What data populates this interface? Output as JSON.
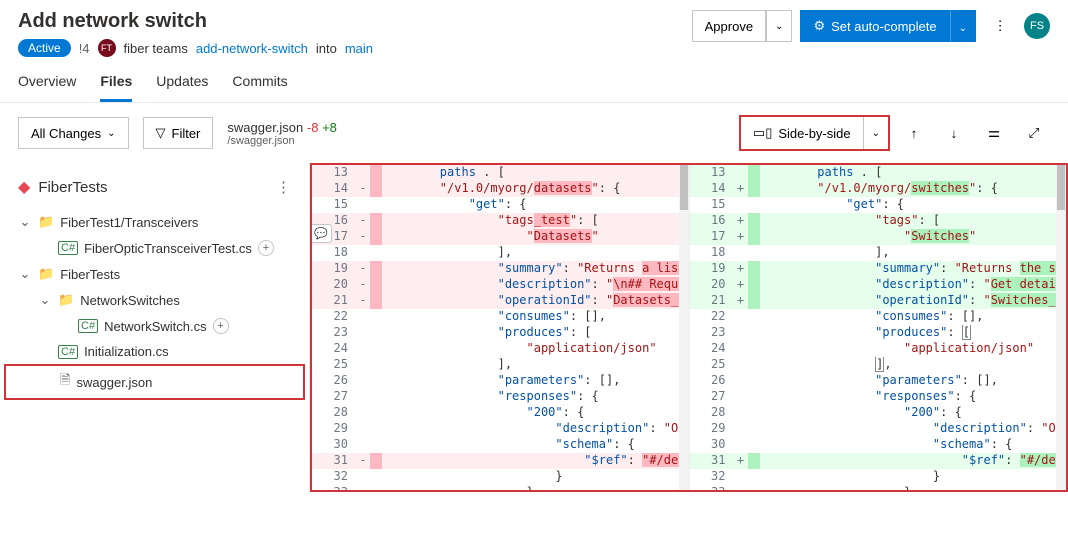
{
  "header": {
    "title": "Add network switch",
    "status": "Active",
    "id": "!4",
    "teamInitials": "FT",
    "teamName": "fiber teams",
    "sourceBranch": "add-network-switch",
    "into": "into",
    "targetBranch": "main",
    "approve": "Approve",
    "autoComplete": "Set auto-complete",
    "userInitials": "FS"
  },
  "tabs": [
    "Overview",
    "Files",
    "Updates",
    "Commits"
  ],
  "activeTab": "Files",
  "toolbar": {
    "allChanges": "All Changes",
    "filter": "Filter",
    "fileName": "swagger.json",
    "filePath": "/swagger.json",
    "deletions": "-8",
    "additions": "+8",
    "viewMode": "Side-by-side"
  },
  "repo": "FiberTests",
  "tree": [
    {
      "type": "folder",
      "label": "FiberTest1/Transceivers",
      "depth": 0,
      "expanded": true
    },
    {
      "type": "cs",
      "label": "FiberOpticTransceiverTest.cs",
      "depth": 1,
      "add": true
    },
    {
      "type": "folder",
      "label": "FiberTests",
      "depth": 0,
      "expanded": true
    },
    {
      "type": "folder",
      "label": "NetworkSwitches",
      "depth": 1,
      "expanded": true
    },
    {
      "type": "cs",
      "label": "NetworkSwitch.cs",
      "depth": 2,
      "add": true
    },
    {
      "type": "cs",
      "label": "Initialization.cs",
      "depth": 1
    },
    {
      "type": "file",
      "label": "swagger.json",
      "depth": 1,
      "selected": true
    }
  ],
  "diff": {
    "colors": {
      "delBg": "#ffeef0",
      "delGutter": "#fdb8c0",
      "addBg": "#e6ffed",
      "addGutter": "#acf2bd",
      "key": "#0451a5",
      "str": "#a31515"
    },
    "left": [
      {
        "n": 13,
        "m": "",
        "t": "del",
        "seg": [
          [
            "        ",
            "p"
          ],
          [
            "paths",
            "k"
          ],
          [
            " . [",
            "p"
          ]
        ]
      },
      {
        "n": 14,
        "m": "-",
        "t": "del",
        "seg": [
          [
            "        ",
            "p"
          ],
          [
            "\"/v1.0/myorg/",
            "str"
          ],
          [
            "datasets",
            "str-hl"
          ],
          [
            "\"",
            "str"
          ],
          [
            ": {",
            "p"
          ]
        ]
      },
      {
        "n": 15,
        "m": "",
        "t": "",
        "seg": [
          [
            "            ",
            "p"
          ],
          [
            "\"get\"",
            "k"
          ],
          [
            ": {",
            "p"
          ]
        ]
      },
      {
        "n": 16,
        "m": "-",
        "t": "del",
        "seg": [
          [
            "                ",
            "p"
          ],
          [
            "\"tags",
            "str"
          ],
          [
            "_test",
            "str-hl"
          ],
          [
            "\"",
            "str"
          ],
          [
            ": [",
            "p"
          ]
        ]
      },
      {
        "n": 17,
        "m": "-",
        "t": "del",
        "seg": [
          [
            "                    ",
            "p"
          ],
          [
            "\"",
            "str"
          ],
          [
            "Datasets",
            "str-hl"
          ],
          [
            "\"",
            "str"
          ]
        ]
      },
      {
        "n": 18,
        "m": "",
        "t": "",
        "seg": [
          [
            "                ],",
            "p"
          ]
        ]
      },
      {
        "n": 19,
        "m": "-",
        "t": "del",
        "seg": [
          [
            "                ",
            "p"
          ],
          [
            "\"summary\"",
            "k"
          ],
          [
            ": ",
            "p"
          ],
          [
            "\"Returns ",
            "str"
          ],
          [
            "a list of",
            "str-hl"
          ]
        ]
      },
      {
        "n": 20,
        "m": "-",
        "t": "del",
        "seg": [
          [
            "                ",
            "p"
          ],
          [
            "\"description\"",
            "k"
          ],
          [
            ": ",
            "p"
          ],
          [
            "\"",
            "str"
          ],
          [
            "\\n## Required",
            "str-hl"
          ]
        ]
      },
      {
        "n": 21,
        "m": "-",
        "t": "del",
        "seg": [
          [
            "                ",
            "p"
          ],
          [
            "\"operationId\"",
            "k"
          ],
          [
            ": ",
            "p"
          ],
          [
            "\"",
            "str"
          ],
          [
            "Datasets_GetD",
            "str-hl"
          ]
        ]
      },
      {
        "n": 22,
        "m": "",
        "t": "",
        "seg": [
          [
            "                ",
            "p"
          ],
          [
            "\"consumes\"",
            "k"
          ],
          [
            ": [],",
            "p"
          ]
        ]
      },
      {
        "n": 23,
        "m": "",
        "t": "",
        "seg": [
          [
            "                ",
            "p"
          ],
          [
            "\"produces\"",
            "k"
          ],
          [
            ": [",
            "p"
          ]
        ]
      },
      {
        "n": 24,
        "m": "",
        "t": "",
        "seg": [
          [
            "                    ",
            "p"
          ],
          [
            "\"application/json\"",
            "str"
          ]
        ]
      },
      {
        "n": 25,
        "m": "",
        "t": "",
        "seg": [
          [
            "                ],",
            "p"
          ]
        ]
      },
      {
        "n": 26,
        "m": "",
        "t": "",
        "seg": [
          [
            "                ",
            "p"
          ],
          [
            "\"parameters\"",
            "k"
          ],
          [
            ": [],",
            "p"
          ]
        ]
      },
      {
        "n": 27,
        "m": "",
        "t": "",
        "seg": [
          [
            "                ",
            "p"
          ],
          [
            "\"responses\"",
            "k"
          ],
          [
            ": {",
            "p"
          ]
        ]
      },
      {
        "n": 28,
        "m": "",
        "t": "",
        "seg": [
          [
            "                    ",
            "p"
          ],
          [
            "\"200\"",
            "k"
          ],
          [
            ": {",
            "p"
          ]
        ]
      },
      {
        "n": 29,
        "m": "",
        "t": "",
        "seg": [
          [
            "                        ",
            "p"
          ],
          [
            "\"description\"",
            "k"
          ],
          [
            ": ",
            "p"
          ],
          [
            "\"OK\"",
            "str"
          ],
          [
            ",",
            "p"
          ]
        ]
      },
      {
        "n": 30,
        "m": "",
        "t": "",
        "seg": [
          [
            "                        ",
            "p"
          ],
          [
            "\"schema\"",
            "k"
          ],
          [
            ": {",
            "p"
          ]
        ]
      },
      {
        "n": 31,
        "m": "-",
        "t": "del",
        "seg": [
          [
            "                            ",
            "p"
          ],
          [
            "\"$ref\"",
            "k"
          ],
          [
            ": ",
            "p"
          ],
          [
            "\"#/definit",
            "str-hl"
          ]
        ]
      },
      {
        "n": 32,
        "m": "",
        "t": "",
        "seg": [
          [
            "                        }",
            "p"
          ]
        ]
      },
      {
        "n": 33,
        "m": "",
        "t": "",
        "seg": [
          [
            "                    }",
            "p"
          ]
        ]
      }
    ],
    "right": [
      {
        "n": 13,
        "m": "",
        "t": "add",
        "seg": [
          [
            "        ",
            "p"
          ],
          [
            "paths",
            "k"
          ],
          [
            " . [",
            "p"
          ]
        ]
      },
      {
        "n": 14,
        "m": "+",
        "t": "add",
        "seg": [
          [
            "        ",
            "p"
          ],
          [
            "\"/v1.0/myorg/",
            "str"
          ],
          [
            "switches",
            "str-hl"
          ],
          [
            "\"",
            "str"
          ],
          [
            ": {",
            "p"
          ]
        ]
      },
      {
        "n": 15,
        "m": "",
        "t": "",
        "seg": [
          [
            "            ",
            "p"
          ],
          [
            "\"get\"",
            "k"
          ],
          [
            ": {",
            "p"
          ]
        ]
      },
      {
        "n": 16,
        "m": "+",
        "t": "add",
        "seg": [
          [
            "                ",
            "p"
          ],
          [
            "\"tags\"",
            "str"
          ],
          [
            ": [",
            "p"
          ]
        ]
      },
      {
        "n": 17,
        "m": "+",
        "t": "add",
        "seg": [
          [
            "                    ",
            "p"
          ],
          [
            "\"",
            "str"
          ],
          [
            "Switches",
            "str-hl"
          ],
          [
            "\"",
            "str"
          ]
        ]
      },
      {
        "n": 18,
        "m": "",
        "t": "",
        "seg": [
          [
            "                ],",
            "p"
          ]
        ]
      },
      {
        "n": 19,
        "m": "+",
        "t": "add",
        "seg": [
          [
            "                ",
            "p"
          ],
          [
            "\"summary\"",
            "k"
          ],
          [
            ": ",
            "p"
          ],
          [
            "\"Returns ",
            "str"
          ],
          [
            "the select",
            "str-hl"
          ]
        ]
      },
      {
        "n": 20,
        "m": "+",
        "t": "add",
        "seg": [
          [
            "                ",
            "p"
          ],
          [
            "\"description\"",
            "k"
          ],
          [
            ": ",
            "p"
          ],
          [
            "\"",
            "str"
          ],
          [
            "Get detailed s",
            "str-hl"
          ]
        ]
      },
      {
        "n": 21,
        "m": "+",
        "t": "add",
        "seg": [
          [
            "                ",
            "p"
          ],
          [
            "\"operationId\"",
            "k"
          ],
          [
            ": ",
            "p"
          ],
          [
            "\"",
            "str"
          ],
          [
            "Switches_GetSw",
            "str-hl"
          ]
        ]
      },
      {
        "n": 22,
        "m": "",
        "t": "",
        "seg": [
          [
            "                ",
            "p"
          ],
          [
            "\"consumes\"",
            "k"
          ],
          [
            ": [],",
            "p"
          ]
        ]
      },
      {
        "n": 23,
        "m": "",
        "t": "",
        "seg": [
          [
            "                ",
            "p"
          ],
          [
            "\"produces\"",
            "k"
          ],
          [
            ": ",
            "p"
          ],
          [
            "[",
            "p-hl"
          ]
        ]
      },
      {
        "n": 24,
        "m": "",
        "t": "",
        "seg": [
          [
            "                    ",
            "p"
          ],
          [
            "\"application/json\"",
            "str"
          ]
        ]
      },
      {
        "n": 25,
        "m": "",
        "t": "",
        "seg": [
          [
            "                ",
            "p"
          ],
          [
            "]",
            "p-hl"
          ],
          [
            ",",
            "p"
          ]
        ]
      },
      {
        "n": 26,
        "m": "",
        "t": "",
        "seg": [
          [
            "                ",
            "p"
          ],
          [
            "\"parameters\"",
            "k"
          ],
          [
            ": [],",
            "p"
          ]
        ]
      },
      {
        "n": 27,
        "m": "",
        "t": "",
        "seg": [
          [
            "                ",
            "p"
          ],
          [
            "\"responses\"",
            "k"
          ],
          [
            ": {",
            "p"
          ]
        ]
      },
      {
        "n": 28,
        "m": "",
        "t": "",
        "seg": [
          [
            "                    ",
            "p"
          ],
          [
            "\"200\"",
            "k"
          ],
          [
            ": {",
            "p"
          ]
        ]
      },
      {
        "n": 29,
        "m": "",
        "t": "",
        "seg": [
          [
            "                        ",
            "p"
          ],
          [
            "\"description\"",
            "k"
          ],
          [
            ": ",
            "p"
          ],
          [
            "\"OK\"",
            "str"
          ],
          [
            ",",
            "p"
          ]
        ]
      },
      {
        "n": 30,
        "m": "",
        "t": "",
        "seg": [
          [
            "                        ",
            "p"
          ],
          [
            "\"schema\"",
            "k"
          ],
          [
            ": {",
            "p"
          ]
        ]
      },
      {
        "n": 31,
        "m": "+",
        "t": "add",
        "seg": [
          [
            "                            ",
            "p"
          ],
          [
            "\"$ref\"",
            "k"
          ],
          [
            ": ",
            "p"
          ],
          [
            "\"#/definit",
            "str-hl"
          ]
        ]
      },
      {
        "n": 32,
        "m": "",
        "t": "",
        "seg": [
          [
            "                        }",
            "p"
          ]
        ]
      },
      {
        "n": 33,
        "m": "",
        "t": "",
        "seg": [
          [
            "                    }",
            "p"
          ]
        ]
      }
    ]
  }
}
